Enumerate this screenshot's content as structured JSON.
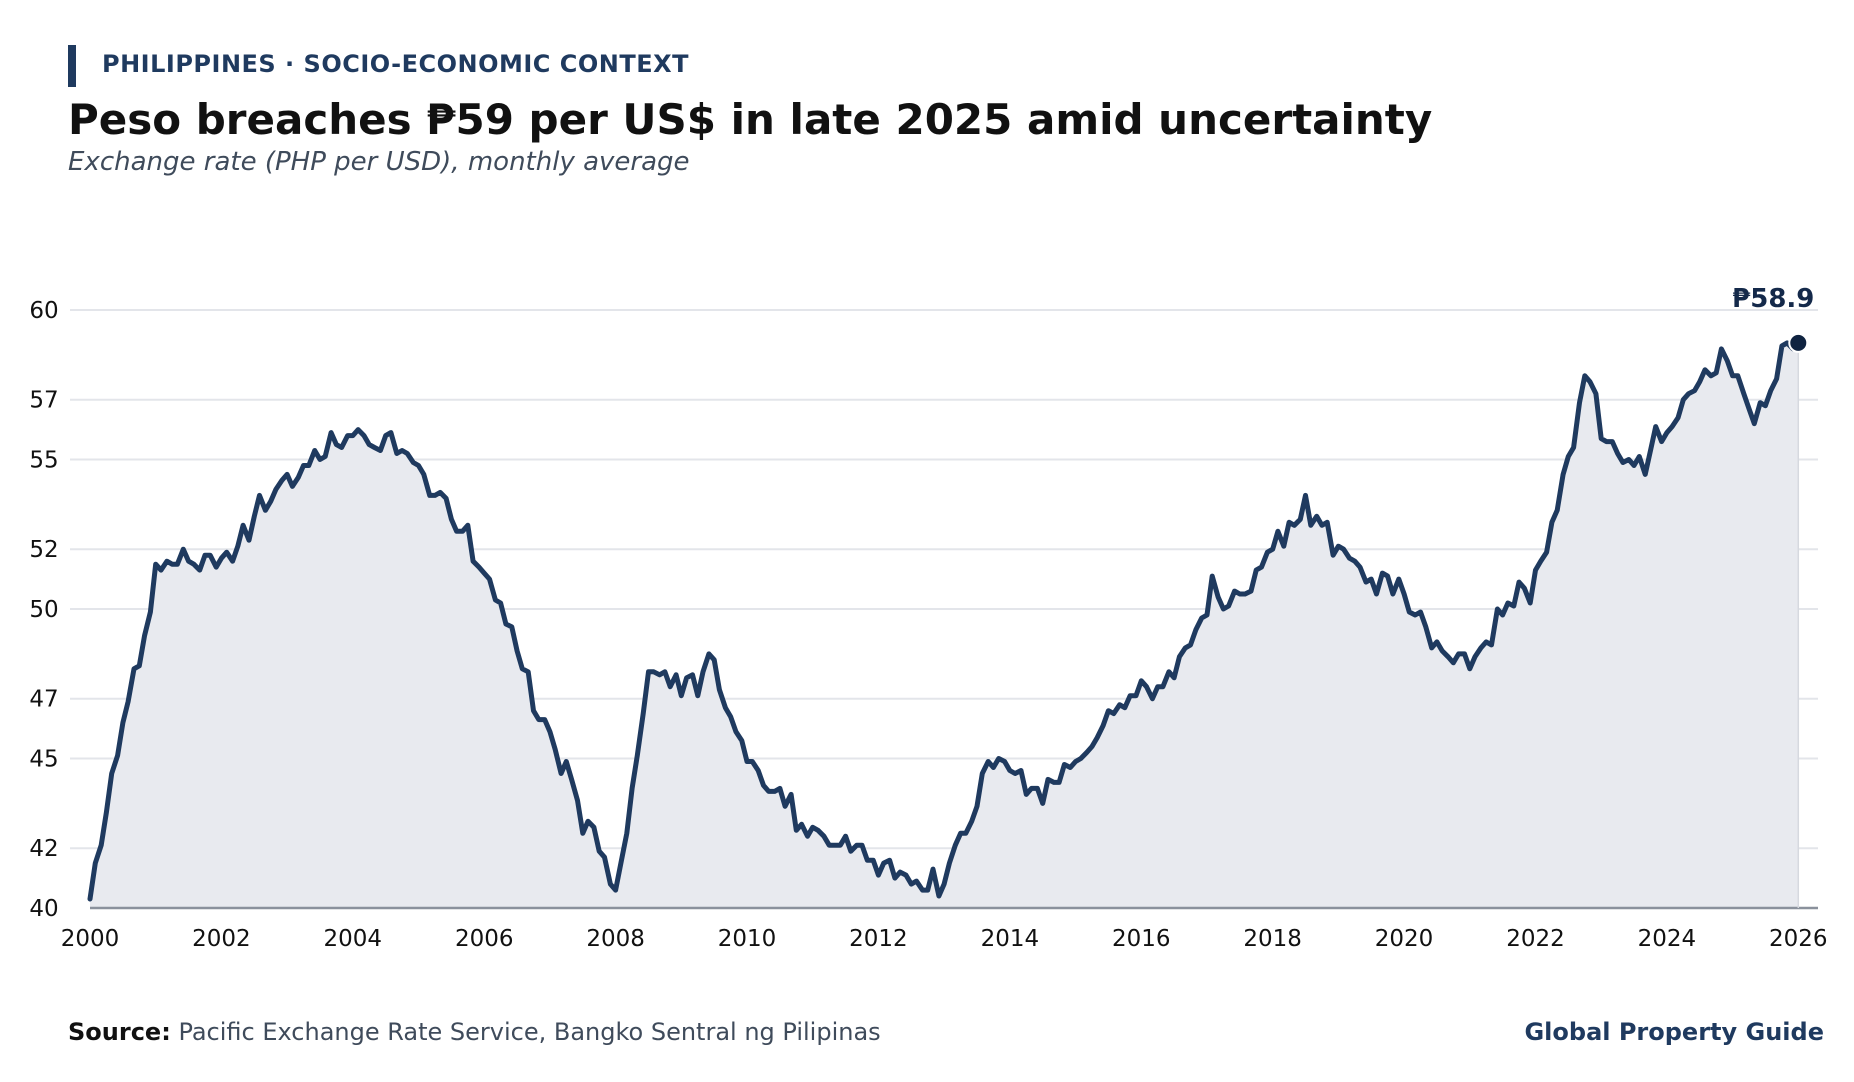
{
  "header": {
    "kicker": "PHILIPPINES · SOCIO-ECONOMIC CONTEXT",
    "title": "Peso breaches ₱59 per US$ in late 2025 amid uncertainty",
    "subtitle": "Exchange rate (PHP per USD), monthly average"
  },
  "footer": {
    "source_label": "Source:",
    "source_text": "Pacific Exchange Rate Service, Bangko Sentral ng Pilipinas",
    "brand": "Global Property Guide"
  },
  "colors": {
    "line": "#1f3a5f",
    "fill": "#e8eaef",
    "grid": "#e3e5ea",
    "axis": "#8a919c",
    "kicker_bar": "#1f3a5f",
    "marker": "#0f2340"
  },
  "chart_data": {
    "type": "area",
    "title": "Peso breaches ₱59 per US$ in late 2025 amid uncertainty",
    "xlabel": "",
    "ylabel": "",
    "xlim": [
      2000,
      2026.3
    ],
    "ylim": [
      40,
      60
    ],
    "y_ticks": [
      40,
      42,
      45,
      47,
      50,
      52,
      55,
      57,
      60
    ],
    "y_tick_labels": [
      "40",
      "42",
      "45",
      "47",
      "50",
      "52",
      "55",
      "57",
      "60"
    ],
    "x_ticks": [
      2000,
      2002,
      2004,
      2006,
      2008,
      2010,
      2012,
      2014,
      2016,
      2018,
      2020,
      2022,
      2024,
      2026
    ],
    "x_tick_labels": [
      "2000",
      "2002",
      "2004",
      "2006",
      "2008",
      "2010",
      "2012",
      "2014",
      "2016",
      "2018",
      "2020",
      "2022",
      "2024",
      "2026"
    ],
    "grid": true,
    "end_label": "₱58.9",
    "series": [
      {
        "x": [
          2000.0,
          2000.08,
          2000.17,
          2000.25,
          2000.33,
          2000.42,
          2000.5,
          2000.58,
          2000.67,
          2000.75,
          2000.83,
          2000.92,
          2001.0,
          2001.08,
          2001.17,
          2001.25,
          2001.33,
          2001.42,
          2001.5,
          2001.58,
          2001.67,
          2001.75,
          2001.83,
          2001.92,
          2002.0,
          2002.08,
          2002.17,
          2002.25,
          2002.33,
          2002.42,
          2002.5,
          2002.58,
          2002.67,
          2002.75,
          2002.83,
          2002.92,
          2003.0,
          2003.08,
          2003.17,
          2003.25,
          2003.33,
          2003.42,
          2003.5,
          2003.58,
          2003.67,
          2003.75,
          2003.83,
          2003.92,
          2004.0,
          2004.08,
          2004.17,
          2004.25,
          2004.33,
          2004.42,
          2004.5,
          2004.58,
          2004.67,
          2004.75,
          2004.83,
          2004.92,
          2005.0,
          2005.08,
          2005.17,
          2005.25,
          2005.33,
          2005.42,
          2005.5,
          2005.58,
          2005.67,
          2005.75,
          2005.83,
          2005.92,
          2006.0,
          2006.08,
          2006.17,
          2006.25,
          2006.33,
          2006.42,
          2006.5,
          2006.58,
          2006.67,
          2006.75,
          2006.83,
          2006.92,
          2007.0,
          2007.08,
          2007.17,
          2007.25,
          2007.33,
          2007.42,
          2007.5,
          2007.58,
          2007.67,
          2007.75,
          2007.83,
          2007.92,
          2008.0,
          2008.08,
          2008.17,
          2008.25,
          2008.33,
          2008.42,
          2008.5,
          2008.58,
          2008.67,
          2008.75,
          2008.83,
          2008.92,
          2009.0,
          2009.08,
          2009.17,
          2009.25,
          2009.33,
          2009.42,
          2009.5,
          2009.58,
          2009.67,
          2009.75,
          2009.83,
          2009.92,
          2010.0,
          2010.08,
          2010.17,
          2010.25,
          2010.33,
          2010.42,
          2010.5,
          2010.58,
          2010.67,
          2010.75,
          2010.83,
          2010.92,
          2011.0,
          2011.08,
          2011.17,
          2011.25,
          2011.33,
          2011.42,
          2011.5,
          2011.58,
          2011.67,
          2011.75,
          2011.83,
          2011.92,
          2012.0,
          2012.08,
          2012.17,
          2012.25,
          2012.33,
          2012.42,
          2012.5,
          2012.58,
          2012.67,
          2012.75,
          2012.83,
          2012.92,
          2013.0,
          2013.08,
          2013.17,
          2013.25,
          2013.33,
          2013.42,
          2013.5,
          2013.58,
          2013.67,
          2013.75,
          2013.83,
          2013.92,
          2014.0,
          2014.08,
          2014.17,
          2014.25,
          2014.33,
          2014.42,
          2014.5,
          2014.58,
          2014.67,
          2014.75,
          2014.83,
          2014.92,
          2015.0,
          2015.08,
          2015.17,
          2015.25,
          2015.33,
          2015.42,
          2015.5,
          2015.58,
          2015.67,
          2015.75,
          2015.83,
          2015.92,
          2016.0,
          2016.08,
          2016.17,
          2016.25,
          2016.33,
          2016.42,
          2016.5,
          2016.58,
          2016.67,
          2016.75,
          2016.83,
          2016.92,
          2017.0,
          2017.08,
          2017.17,
          2017.25,
          2017.33,
          2017.42,
          2017.5,
          2017.58,
          2017.67,
          2017.75,
          2017.83,
          2017.92,
          2018.0,
          2018.08,
          2018.17,
          2018.25,
          2018.33,
          2018.42,
          2018.5,
          2018.58,
          2018.67,
          2018.75,
          2018.83,
          2018.92,
          2019.0,
          2019.08,
          2019.17,
          2019.25,
          2019.33,
          2019.42,
          2019.5,
          2019.58,
          2019.67,
          2019.75,
          2019.83,
          2019.92,
          2020.0,
          2020.08,
          2020.17,
          2020.25,
          2020.33,
          2020.42,
          2020.5,
          2020.58,
          2020.67,
          2020.75,
          2020.83,
          2020.92,
          2021.0,
          2021.08,
          2021.17,
          2021.25,
          2021.33,
          2021.42,
          2021.5,
          2021.58,
          2021.67,
          2021.75,
          2021.83,
          2021.92,
          2022.0,
          2022.08,
          2022.17,
          2022.25,
          2022.33,
          2022.42,
          2022.5,
          2022.58,
          2022.67,
          2022.75,
          2022.83,
          2022.92,
          2023.0,
          2023.08,
          2023.17,
          2023.25,
          2023.33,
          2023.42,
          2023.5,
          2023.58,
          2023.67,
          2023.75,
          2023.83,
          2023.92,
          2024.0,
          2024.08,
          2024.17,
          2024.25,
          2024.33,
          2024.42,
          2024.5,
          2024.58,
          2024.67,
          2024.75,
          2024.83,
          2024.92,
          2025.0,
          2025.08,
          2025.17,
          2025.25,
          2025.33,
          2025.42,
          2025.5,
          2025.58,
          2025.67,
          2025.75,
          2025.83,
          2025.92,
          2026.0
        ],
        "y": [
          40.3,
          41.5,
          42.1,
          43.2,
          44.5,
          45.1,
          46.2,
          46.9,
          48.0,
          48.1,
          49.1,
          49.9,
          51.5,
          51.3,
          51.6,
          51.5,
          51.5,
          52.0,
          51.6,
          51.5,
          51.3,
          51.8,
          51.8,
          51.4,
          51.7,
          51.9,
          51.6,
          52.1,
          52.8,
          52.3,
          53.1,
          53.8,
          53.3,
          53.6,
          54.0,
          54.3,
          54.5,
          54.1,
          54.4,
          54.8,
          54.8,
          55.3,
          55.0,
          55.1,
          55.9,
          55.5,
          55.4,
          55.8,
          55.8,
          56.0,
          55.8,
          55.5,
          55.4,
          55.3,
          55.8,
          55.9,
          55.2,
          55.3,
          55.2,
          54.9,
          54.8,
          54.5,
          53.8,
          53.8,
          53.9,
          53.7,
          53.0,
          52.6,
          52.6,
          52.8,
          51.6,
          51.4,
          51.2,
          51.0,
          50.3,
          50.2,
          49.5,
          49.4,
          48.6,
          48.0,
          47.9,
          46.6,
          46.3,
          46.3,
          45.9,
          45.3,
          44.5,
          44.9,
          44.3,
          43.6,
          42.5,
          42.9,
          42.7,
          41.9,
          41.7,
          40.8,
          40.6,
          41.5,
          42.5,
          44.0,
          45.1,
          46.5,
          47.9,
          47.9,
          47.8,
          47.9,
          47.4,
          47.8,
          47.1,
          47.7,
          47.8,
          47.1,
          47.9,
          48.5,
          48.3,
          47.3,
          46.7,
          46.4,
          45.9,
          45.6,
          44.9,
          44.9,
          44.6,
          44.1,
          43.9,
          43.9,
          44.0,
          43.4,
          43.8,
          42.6,
          42.8,
          42.4,
          42.7,
          42.6,
          42.4,
          42.1,
          42.1,
          42.1,
          42.4,
          41.9,
          42.1,
          42.1,
          41.6,
          41.6,
          41.1,
          41.5,
          41.6,
          41.0,
          41.2,
          41.1,
          40.8,
          40.9,
          40.6,
          40.6,
          41.3,
          40.4,
          40.8,
          41.5,
          42.1,
          42.5,
          42.5,
          42.9,
          43.4,
          44.5,
          44.9,
          44.7,
          45.0,
          44.9,
          44.6,
          44.5,
          44.6,
          43.8,
          44.0,
          44.0,
          43.5,
          44.3,
          44.2,
          44.2,
          44.8,
          44.7,
          44.9,
          45.0,
          45.2,
          45.4,
          45.7,
          46.1,
          46.6,
          46.5,
          46.8,
          46.7,
          47.1,
          47.1,
          47.6,
          47.4,
          47.0,
          47.4,
          47.4,
          47.9,
          47.7,
          48.4,
          48.7,
          48.8,
          49.3,
          49.7,
          49.8,
          51.1,
          50.4,
          50.0,
          50.1,
          50.6,
          50.5,
          50.5,
          50.6,
          51.3,
          51.4,
          51.9,
          52.0,
          52.6,
          52.1,
          52.9,
          52.8,
          53.0,
          53.8,
          52.8,
          53.1,
          52.8,
          52.9,
          51.8,
          52.1,
          52.0,
          51.7,
          51.6,
          51.4,
          50.9,
          51.0,
          50.5,
          51.2,
          51.1,
          50.5,
          51.0,
          50.5,
          49.9,
          49.8,
          49.9,
          49.4,
          48.7,
          48.9,
          48.6,
          48.4,
          48.2,
          48.5,
          48.5,
          48.0,
          48.4,
          48.7,
          48.9,
          48.8,
          50.0,
          49.8,
          50.2,
          50.1,
          50.9,
          50.7,
          50.2,
          51.3,
          51.6,
          51.9,
          52.9,
          53.3,
          54.5,
          55.1,
          55.4,
          56.9,
          57.8,
          57.6,
          57.2,
          55.7,
          55.6,
          55.6,
          55.2,
          54.9,
          55.0,
          54.8,
          55.1,
          54.5,
          55.3,
          56.1,
          55.6,
          55.9,
          56.1,
          56.4,
          57.0,
          57.2,
          57.3,
          57.6,
          58.0,
          57.8,
          57.9,
          58.7,
          58.3,
          57.8,
          57.8,
          57.2,
          56.7,
          56.2,
          56.9,
          56.8,
          57.3,
          57.7,
          58.8,
          58.9,
          58.7,
          58.9
        ]
      }
    ]
  }
}
